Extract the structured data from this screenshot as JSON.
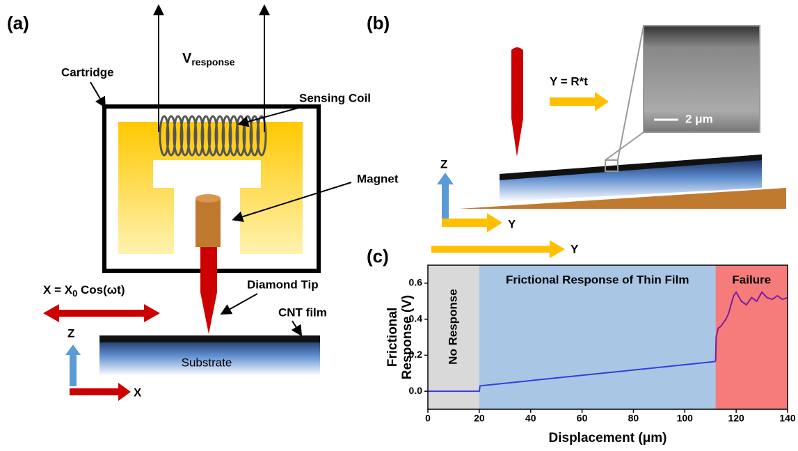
{
  "panel_a": {
    "label": "(a)",
    "cartridge": "Cartridge",
    "v_response": {
      "main": "V",
      "sub": "response"
    },
    "sensing_coil": "Sensing Coil",
    "magnet": "Magnet",
    "diamond_tip": "Diamond Tip",
    "motion": {
      "pre": "X = X",
      "sub": "0",
      "post": " Cos(ωt)"
    },
    "cnt_film": "CNT film",
    "substrate": "Substrate",
    "axis_z": "Z",
    "axis_x": "X"
  },
  "panel_b": {
    "label": "(b)",
    "motion": "Y = R*t",
    "scale_bar": "2 μm",
    "axis_z": "Z",
    "axis_y": "Y",
    "scan_axis": "Y"
  },
  "chart_data": {
    "type": "line",
    "label": "(c)",
    "xlabel": "Displacement (μm)",
    "ylabel": [
      "Frictional",
      "Response (V)"
    ],
    "xlim": [
      0,
      140
    ],
    "xticks": [
      0,
      20,
      40,
      60,
      80,
      100,
      120,
      140
    ],
    "ylim": [
      -0.1,
      0.7
    ],
    "yticks": [
      {
        "value": 0,
        "label": "0.0"
      },
      0.2,
      0.4,
      0.6
    ],
    "regions": [
      {
        "label": "No Response",
        "xlim": [
          0,
          20
        ],
        "color": "#d9d9d9"
      },
      {
        "label": "Frictional Response of Thin Film",
        "xlim": [
          20,
          112
        ],
        "color": "#a9c6e4"
      },
      {
        "label": "Failure",
        "xlim": [
          112,
          140
        ],
        "color": "#f67c7c"
      }
    ],
    "series": [
      {
        "color": "#3a3adf",
        "x": [
          0,
          20,
          20.3,
          112
        ],
        "values": [
          0,
          0,
          0.03,
          0.165
        ]
      },
      {
        "color": "#7a1f9a",
        "x": [
          112,
          112.2,
          113,
          114,
          115,
          116,
          117,
          118,
          119,
          120,
          122,
          124,
          126,
          128,
          130,
          132,
          134,
          136,
          138,
          140
        ],
        "values": [
          0.165,
          0.3,
          0.35,
          0.36,
          0.38,
          0.4,
          0.43,
          0.48,
          0.53,
          0.55,
          0.5,
          0.48,
          0.52,
          0.5,
          0.55,
          0.52,
          0.51,
          0.53,
          0.51,
          0.52
        ]
      }
    ]
  }
}
